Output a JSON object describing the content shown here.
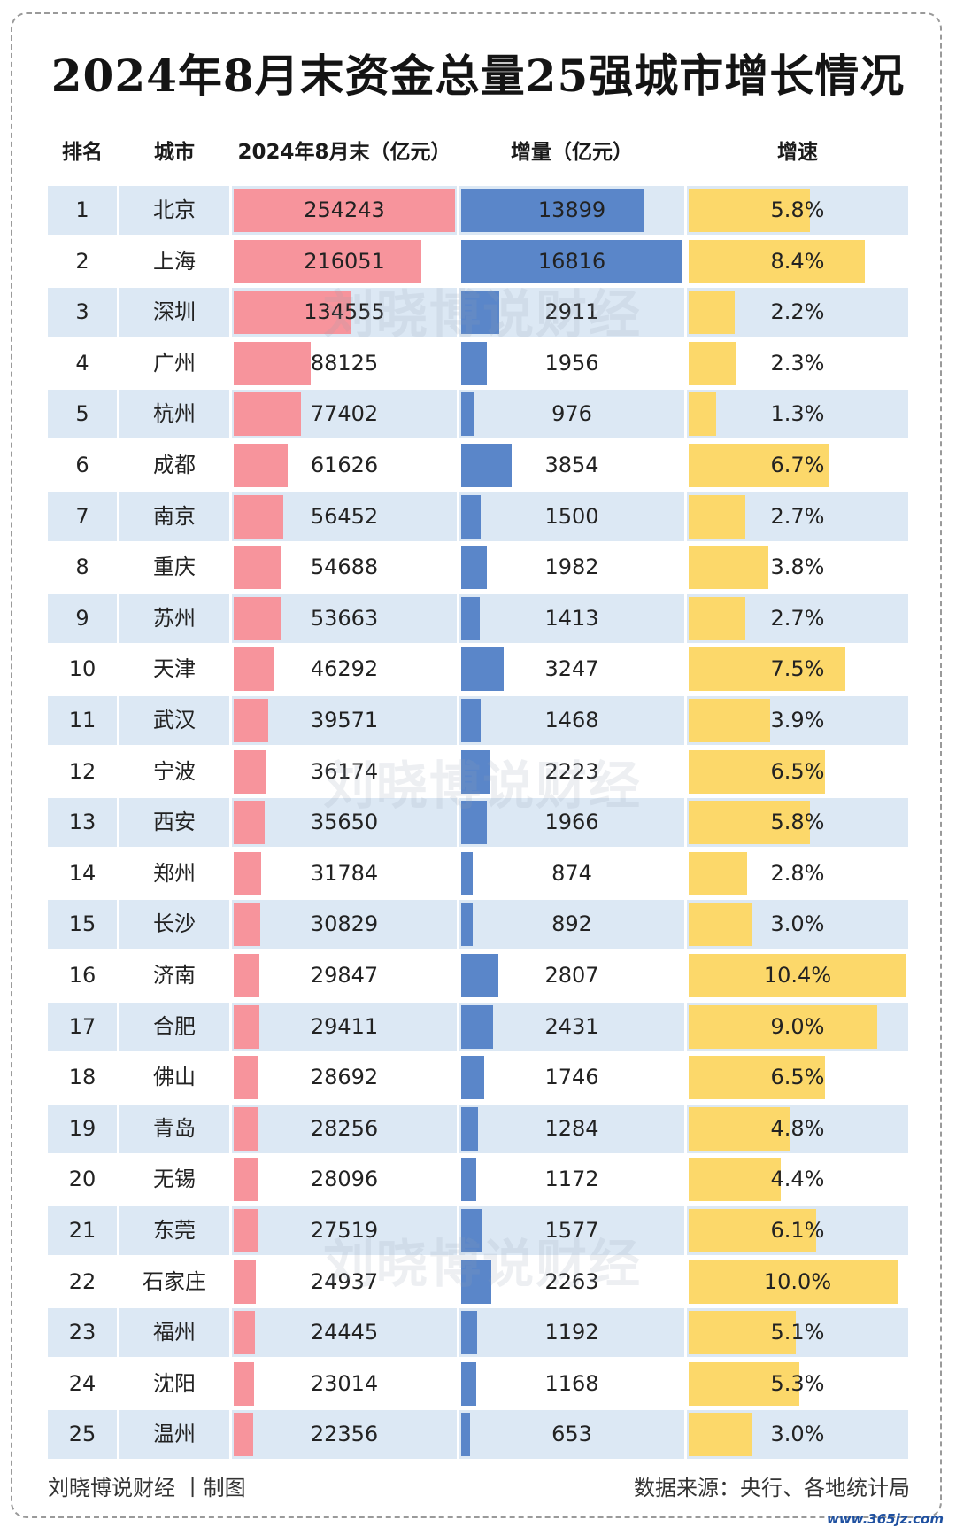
{
  "title": "2024年8月末资金总量25强城市增长情况",
  "watermark": "刘晓博说财经",
  "footer": {
    "left": "刘晓博说财经 丨制图",
    "right": "数据来源：央行、各地统计局"
  },
  "site": "www.365jz.com",
  "colors": {
    "balance_bar": "#f7949c",
    "increase_bar": "#5a86c9",
    "growth_bar": "#fcd86a",
    "row_stripe": "#dce8f4"
  },
  "chart_data": {
    "type": "table",
    "title": "2024年8月末资金总量25强城市增长情况",
    "columns": [
      "排名",
      "城市",
      "2024年8月末（亿元）",
      "增量（亿元）",
      "增速"
    ],
    "rows": [
      {
        "rank": "1",
        "city": "北京",
        "balance": 254243,
        "increase": 13899,
        "growth": "5.8%"
      },
      {
        "rank": "2",
        "city": "上海",
        "balance": 216051,
        "increase": 16816,
        "growth": "8.4%"
      },
      {
        "rank": "3",
        "city": "深圳",
        "balance": 134555,
        "increase": 2911,
        "growth": "2.2%"
      },
      {
        "rank": "4",
        "city": "广州",
        "balance": 88125,
        "increase": 1956,
        "growth": "2.3%"
      },
      {
        "rank": "5",
        "city": "杭州",
        "balance": 77402,
        "increase": 976,
        "growth": "1.3%"
      },
      {
        "rank": "6",
        "city": "成都",
        "balance": 61626,
        "increase": 3854,
        "growth": "6.7%"
      },
      {
        "rank": "7",
        "city": "南京",
        "balance": 56452,
        "increase": 1500,
        "growth": "2.7%"
      },
      {
        "rank": "8",
        "city": "重庆",
        "balance": 54688,
        "increase": 1982,
        "growth": "3.8%"
      },
      {
        "rank": "9",
        "city": "苏州",
        "balance": 53663,
        "increase": 1413,
        "growth": "2.7%"
      },
      {
        "rank": "10",
        "city": "天津",
        "balance": 46292,
        "increase": 3247,
        "growth": "7.5%"
      },
      {
        "rank": "11",
        "city": "武汉",
        "balance": 39571,
        "increase": 1468,
        "growth": "3.9%"
      },
      {
        "rank": "12",
        "city": "宁波",
        "balance": 36174,
        "increase": 2223,
        "growth": "6.5%"
      },
      {
        "rank": "13",
        "city": "西安",
        "balance": 35650,
        "increase": 1966,
        "growth": "5.8%"
      },
      {
        "rank": "14",
        "city": "郑州",
        "balance": 31784,
        "increase": 874,
        "growth": "2.8%"
      },
      {
        "rank": "15",
        "city": "长沙",
        "balance": 30829,
        "increase": 892,
        "growth": "3.0%"
      },
      {
        "rank": "16",
        "city": "济南",
        "balance": 29847,
        "increase": 2807,
        "growth": "10.4%"
      },
      {
        "rank": "17",
        "city": "合肥",
        "balance": 29411,
        "increase": 2431,
        "growth": "9.0%"
      },
      {
        "rank": "18",
        "city": "佛山",
        "balance": 28692,
        "increase": 1746,
        "growth": "6.5%"
      },
      {
        "rank": "19",
        "city": "青岛",
        "balance": 28256,
        "increase": 1284,
        "growth": "4.8%"
      },
      {
        "rank": "20",
        "city": "无锡",
        "balance": 28096,
        "increase": 1172,
        "growth": "4.4%"
      },
      {
        "rank": "21",
        "city": "东莞",
        "balance": 27519,
        "increase": 1577,
        "growth": "6.1%"
      },
      {
        "rank": "22",
        "city": "石家庄",
        "balance": 24937,
        "increase": 2263,
        "growth": "10.0%"
      },
      {
        "rank": "23",
        "city": "福州",
        "balance": 24445,
        "increase": 1192,
        "growth": "5.1%"
      },
      {
        "rank": "24",
        "city": "沈阳",
        "balance": 23014,
        "increase": 1168,
        "growth": "5.3%"
      },
      {
        "rank": "25",
        "city": "温州",
        "balance": 22356,
        "increase": 653,
        "growth": "3.0%"
      }
    ]
  }
}
